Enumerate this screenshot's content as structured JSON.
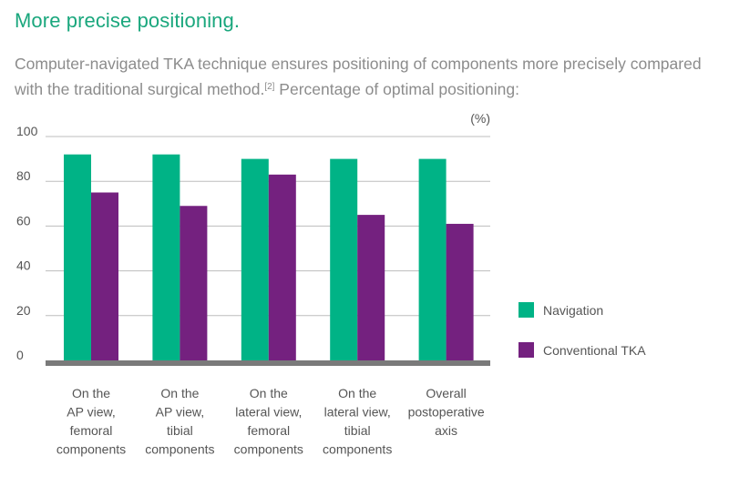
{
  "header": {
    "title": "More precise positioning.",
    "desc_text": "Computer-navigated TKA technique ensures positioning of components more precisely compared with the traditional surgical method.",
    "ref": "[2]",
    "desc_suffix": " Percentage of optimal positioning:"
  },
  "colors": {
    "navigation": "#00b386",
    "conventional": "#74217f",
    "grid": "#bdbdbd",
    "baseline": "#7a7a7a"
  },
  "chart_data": {
    "type": "bar",
    "unit": "(%)",
    "ylim": [
      0,
      100
    ],
    "yticks": [
      0,
      20,
      40,
      60,
      80,
      100
    ],
    "grid": true,
    "legend_position": "right",
    "categories": [
      [
        "On the",
        "AP view,",
        "femoral",
        "components"
      ],
      [
        "On the",
        "AP view,",
        "tibial",
        "components"
      ],
      [
        "On the",
        "lateral view,",
        "femoral",
        "components"
      ],
      [
        "On the",
        "lateral view,",
        "tibial",
        "components"
      ],
      [
        "Overall",
        "postoperative",
        "axis"
      ]
    ],
    "series": [
      {
        "name": "Navigation",
        "values": [
          92,
          92,
          90,
          90,
          90
        ]
      },
      {
        "name": "Conventional TKA",
        "values": [
          75,
          69,
          83,
          65,
          61
        ]
      }
    ]
  }
}
